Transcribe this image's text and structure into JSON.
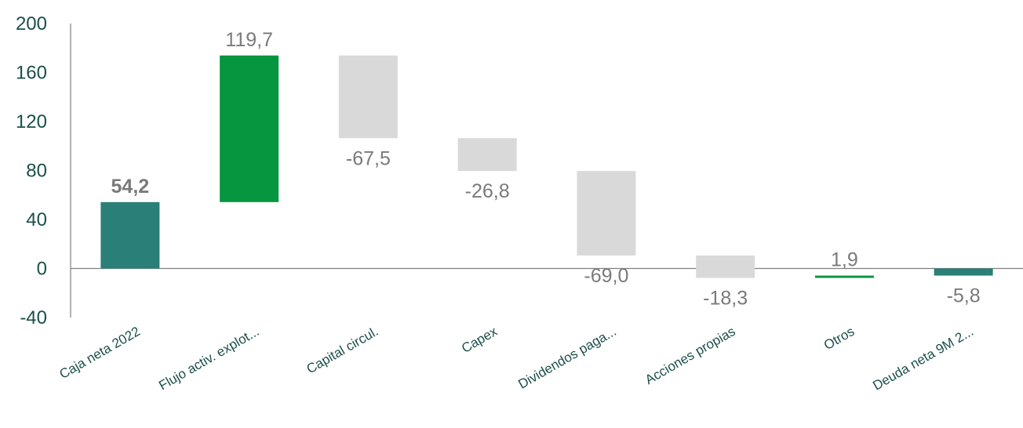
{
  "chart_data": {
    "type": "bar",
    "subtype": "waterfall",
    "title": "",
    "xlabel": "",
    "ylabel": "",
    "ylim": [
      -40,
      200
    ],
    "yticks": [
      -40,
      0,
      40,
      80,
      120,
      160,
      200
    ],
    "ytick_labels": [
      "-40",
      "0",
      "40",
      "80",
      "120",
      "160",
      "200"
    ],
    "grid": false,
    "legend": "none",
    "categories": [
      "Caja neta 2022",
      "Flujo activ. explot...",
      "Capital circul.",
      "Capex",
      "Dividendos paga...",
      "Acciones propias",
      "Otros",
      "Deuda neta 9M 2..."
    ],
    "values": [
      54.2,
      119.7,
      -67.5,
      -26.8,
      -69.0,
      -18.3,
      1.9,
      -5.8
    ],
    "value_labels": [
      "54,2",
      "119,7",
      "-67,5",
      "-26,8",
      "-69,0",
      "-18,3",
      "1,9",
      "-5,8"
    ],
    "bar_kind": [
      "total",
      "delta",
      "delta",
      "delta",
      "delta",
      "delta",
      "delta",
      "total"
    ],
    "colors": {
      "total": "#2a7f78",
      "increase": "#05963f",
      "decrease": "#d9d9d9",
      "axis_text": "#1b4f4a",
      "label_text": "#7a7a7a",
      "axis_line": "#808080"
    }
  }
}
